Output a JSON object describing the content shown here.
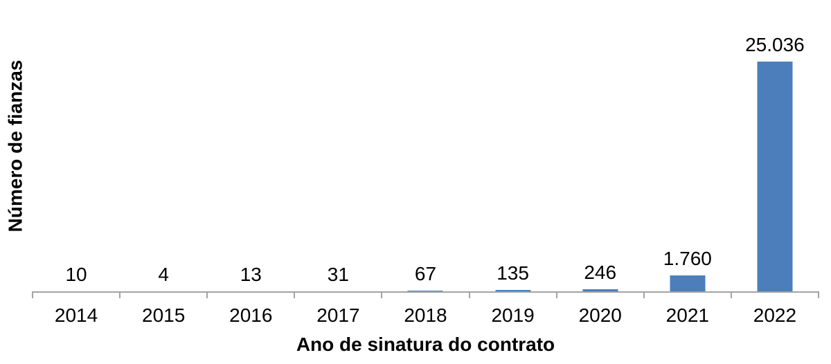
{
  "chart_data": {
    "type": "bar",
    "title": "",
    "categories": [
      "2014",
      "2015",
      "2016",
      "2017",
      "2018",
      "2019",
      "2020",
      "2021",
      "2022"
    ],
    "values": [
      10,
      4,
      13,
      31,
      67,
      135,
      246,
      1760,
      25036
    ],
    "value_labels": [
      "10",
      "4",
      "13",
      "31",
      "67",
      "135",
      "246",
      "1.760",
      "25.036"
    ],
    "xlabel": "Ano de sinatura do contrato",
    "ylabel": "Número de fianzas",
    "ylim": [
      0,
      25036
    ],
    "grid": false,
    "legend": "none",
    "colors": {
      "bar": "#4B7EBB",
      "axis": "#A3A3A3",
      "text": "#000000",
      "background": "#FFFFFF"
    }
  }
}
